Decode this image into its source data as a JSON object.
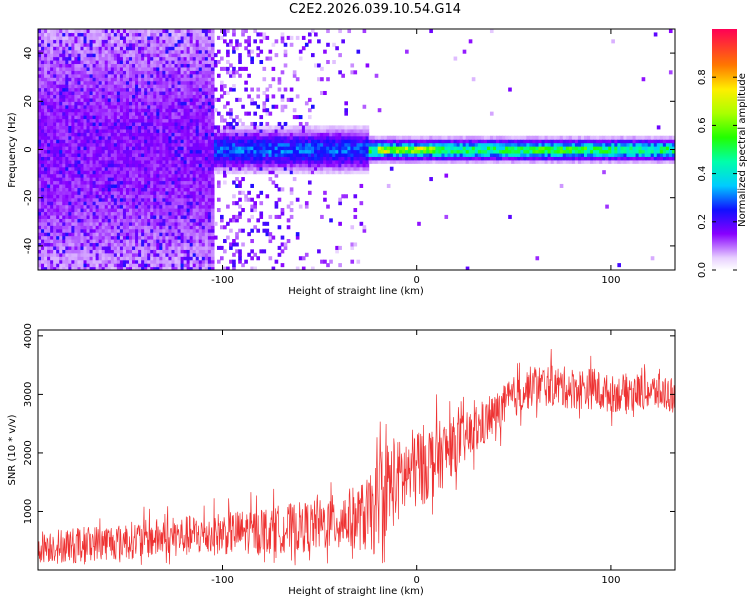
{
  "title": "C2E2.2026.039.10.54.G14",
  "chart_data": [
    {
      "type": "heatmap",
      "xlabel": "Height of straight line (km)",
      "ylabel": "Frequency (Hz)",
      "xlim": [
        -195,
        133
      ],
      "ylim": [
        -50,
        50
      ],
      "xticks": [
        -100,
        0,
        100
      ],
      "xtick_labels": [
        "-100",
        "0",
        "100"
      ],
      "yticks": [
        -40,
        -20,
        0,
        20,
        40
      ],
      "ytick_labels": [
        "-40",
        "-20",
        "0",
        "20",
        "40"
      ],
      "colorbar": {
        "label": "Normalized spectral amplitude",
        "range": [
          0,
          1
        ],
        "ticks": [
          0,
          0.2,
          0.4,
          0.6,
          0.8
        ],
        "tick_labels": [
          "0.0",
          "0.2",
          "0.4",
          "0.6",
          "0.8"
        ],
        "colormap": "rainbow"
      },
      "signal_band": [
        {
          "x_range": [
            -195,
            -105
          ],
          "freq_center": 0,
          "freq_spread": 48,
          "amplitude": 0.15
        },
        {
          "x_range": [
            -105,
            -25
          ],
          "freq_center": 0,
          "freq_spread": 6,
          "amplitude": 0.3
        },
        {
          "x_range": [
            -25,
            133
          ],
          "freq_center": 0,
          "freq_spread": 3,
          "amplitude": 0.5
        },
        {
          "x_range": [
            -20,
            10
          ],
          "freq_center": 0,
          "freq_spread": 1,
          "amplitude": 0.95
        },
        {
          "x_range": [
            60,
            100
          ],
          "freq_center": 0,
          "freq_spread": 1,
          "amplitude": 0.75
        }
      ]
    },
    {
      "type": "line",
      "xlabel": "Height of straight line (km)",
      "ylabel": "SNR (10 * v/v)",
      "xlim": [
        -195,
        133
      ],
      "ylim": [
        0,
        4100
      ],
      "xticks": [
        -100,
        0,
        100
      ],
      "xtick_labels": [
        "-100",
        "0",
        "100"
      ],
      "yticks": [
        1000,
        2000,
        3000,
        4000
      ],
      "ytick_labels": [
        "1000",
        "2000",
        "3000",
        "4000"
      ],
      "series": [
        {
          "color": "#ee3333",
          "x": [
            -195,
            -170,
            -150,
            -130,
            -110,
            -90,
            -70,
            -50,
            -40,
            -30,
            -22,
            -18,
            -10,
            0,
            10,
            20,
            30,
            40,
            50,
            60,
            70,
            80,
            90,
            100,
            110,
            120,
            133
          ],
          "y": [
            400,
            450,
            500,
            550,
            600,
            650,
            700,
            760,
            850,
            900,
            950,
            1400,
            1500,
            1750,
            1900,
            2150,
            2350,
            2650,
            2950,
            3150,
            3150,
            3100,
            3100,
            3000,
            3050,
            3050,
            3000
          ],
          "noise_amplitude": [
            350,
            380,
            400,
            430,
            450,
            480,
            520,
            560,
            600,
            700,
            900,
            1100,
            900,
            900,
            800,
            600,
            500,
            450,
            450,
            450,
            450,
            450,
            450,
            400,
            400,
            400,
            400
          ]
        }
      ]
    }
  ]
}
